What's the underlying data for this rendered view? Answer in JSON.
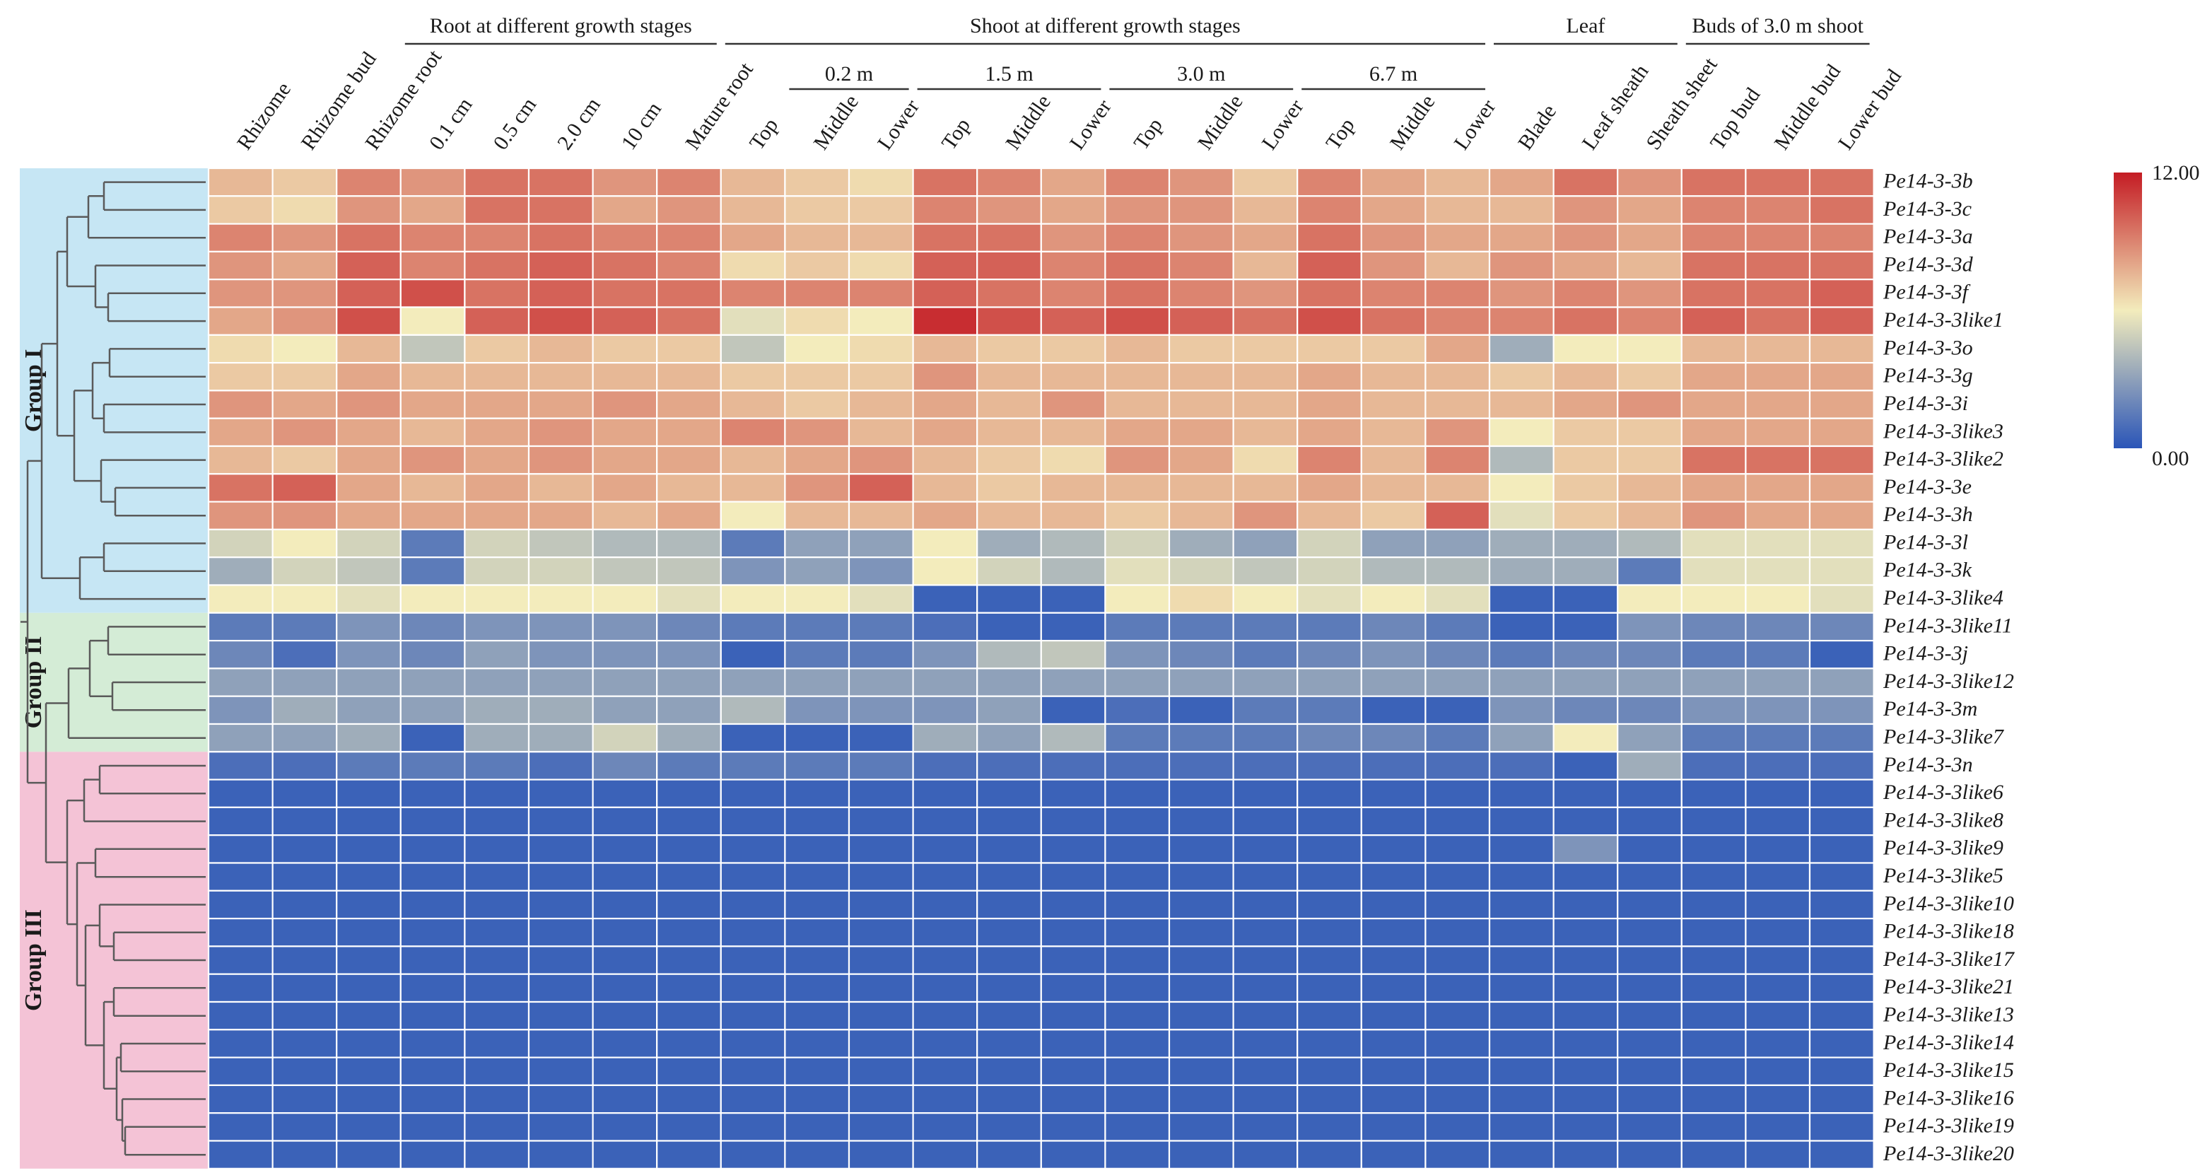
{
  "chart_data": {
    "type": "heatmap",
    "title": "",
    "xlabel": "",
    "ylabel": "",
    "color_scale": {
      "min": 0.0,
      "max": 12.0,
      "min_label": "0.00",
      "max_label": "12.00",
      "colors": [
        "#2a55b8",
        "#f3ecbc",
        "#c41c24"
      ]
    },
    "columns": [
      "Rhizome",
      "Rhizome bud",
      "Rhizome root",
      "0.1 cm",
      "0.5 cm",
      "2.0 cm",
      "10 cm",
      "Mature root",
      "Top",
      "Middle",
      "Lower",
      "Top",
      "Middle",
      "Lower",
      "Top",
      "Middle",
      "Lower",
      "Top",
      "Middle",
      "Lower",
      "Blade",
      "Leaf sheath",
      "Sheath sheet",
      "Top bud",
      "Middle bud",
      "Lower bud"
    ],
    "column_groups": [
      {
        "label": "Root at different growth stages",
        "start": 3,
        "end": 7
      },
      {
        "label": "Shoot at different growth stages",
        "start": 8,
        "end": 19
      },
      {
        "label": "Leaf",
        "start": 20,
        "end": 22
      },
      {
        "label": "Buds of 3.0 m shoot",
        "start": 23,
        "end": 25
      }
    ],
    "column_subgroups": [
      {
        "label": "0.2 m",
        "start": 9,
        "end": 10
      },
      {
        "label": "1.5 m",
        "start": 11,
        "end": 13
      },
      {
        "label": "3.0 m",
        "start": 14,
        "end": 16
      },
      {
        "label": "6.7 m",
        "start": 17,
        "end": 19
      }
    ],
    "rows": [
      "Pe14-3-3b",
      "Pe14-3-3c",
      "Pe14-3-3a",
      "Pe14-3-3d",
      "Pe14-3-3f",
      "Pe14-3-3like1",
      "Pe14-3-3o",
      "Pe14-3-3g",
      "Pe14-3-3i",
      "Pe14-3-3like3",
      "Pe14-3-3like2",
      "Pe14-3-3e",
      "Pe14-3-3h",
      "Pe14-3-3l",
      "Pe14-3-3k",
      "Pe14-3-3like4",
      "Pe14-3-3like11",
      "Pe14-3-3j",
      "Pe14-3-3like12",
      "Pe14-3-3m",
      "Pe14-3-3like7",
      "Pe14-3-3n",
      "Pe14-3-3like6",
      "Pe14-3-3like8",
      "Pe14-3-3like9",
      "Pe14-3-3like5",
      "Pe14-3-3like10",
      "Pe14-3-3like18",
      "Pe14-3-3like17",
      "Pe14-3-3like21",
      "Pe14-3-3like13",
      "Pe14-3-3like14",
      "Pe14-3-3like15",
      "Pe14-3-3like16",
      "Pe14-3-3like19",
      "Pe14-3-3like20"
    ],
    "row_groups": [
      {
        "label": "Group I",
        "start": 0,
        "end": 15,
        "color": "#c6e6f4"
      },
      {
        "label": "Group II",
        "start": 16,
        "end": 20,
        "color": "#d4ecd6"
      },
      {
        "label": "Group III",
        "start": 21,
        "end": 35,
        "color": "#f4c3d6"
      }
    ],
    "values": [
      [
        7.5,
        7.0,
        9.0,
        8.5,
        9.5,
        9.5,
        8.5,
        9.0,
        7.5,
        7.0,
        6.5,
        9.5,
        9.0,
        8.0,
        9.0,
        8.5,
        7.0,
        9.0,
        8.0,
        7.5,
        8.0,
        9.5,
        8.5,
        9.5,
        9.5,
        9.5
      ],
      [
        7.0,
        6.5,
        8.5,
        8.0,
        9.5,
        9.5,
        8.0,
        8.5,
        7.5,
        7.0,
        7.0,
        9.0,
        8.5,
        8.0,
        8.5,
        8.5,
        7.5,
        9.0,
        8.0,
        7.5,
        7.5,
        8.5,
        8.0,
        9.0,
        9.0,
        9.5
      ],
      [
        9.0,
        8.5,
        9.5,
        9.0,
        9.0,
        9.5,
        9.0,
        9.0,
        8.0,
        7.5,
        7.5,
        9.5,
        9.5,
        8.5,
        9.0,
        8.5,
        8.0,
        9.5,
        8.5,
        8.0,
        8.0,
        8.5,
        8.0,
        9.0,
        9.0,
        9.0
      ],
      [
        8.5,
        8.0,
        10.0,
        9.0,
        9.5,
        10.0,
        9.5,
        9.0,
        6.5,
        7.0,
        6.5,
        10.0,
        10.0,
        9.0,
        9.5,
        9.0,
        7.5,
        10.0,
        8.5,
        7.5,
        8.5,
        8.0,
        7.5,
        9.5,
        9.5,
        9.5
      ],
      [
        8.5,
        8.5,
        10.0,
        10.5,
        9.5,
        10.0,
        9.5,
        9.5,
        9.0,
        9.0,
        9.0,
        10.0,
        9.5,
        9.0,
        9.5,
        9.0,
        8.5,
        9.5,
        9.0,
        9.0,
        8.5,
        9.0,
        8.5,
        9.5,
        9.5,
        10.0
      ],
      [
        8.0,
        8.5,
        10.5,
        6.0,
        10.0,
        10.5,
        10.0,
        9.5,
        5.5,
        6.5,
        6.0,
        11.5,
        10.5,
        10.0,
        10.5,
        10.0,
        9.5,
        10.5,
        9.5,
        9.0,
        9.0,
        9.5,
        9.0,
        10.0,
        9.5,
        10.0
      ],
      [
        6.5,
        6.0,
        7.5,
        4.5,
        7.0,
        7.5,
        7.0,
        7.0,
        4.5,
        6.0,
        6.5,
        7.5,
        7.0,
        7.0,
        7.5,
        7.0,
        7.0,
        7.0,
        7.0,
        8.0,
        3.5,
        6.0,
        6.0,
        7.5,
        7.5,
        7.5
      ],
      [
        7.0,
        7.0,
        8.0,
        7.5,
        7.5,
        7.5,
        7.5,
        7.5,
        7.0,
        7.0,
        7.0,
        8.5,
        7.5,
        7.5,
        7.5,
        7.5,
        7.5,
        8.0,
        7.5,
        7.5,
        7.0,
        7.5,
        7.0,
        8.0,
        8.0,
        8.0
      ],
      [
        8.5,
        8.0,
        8.5,
        8.0,
        8.0,
        8.0,
        8.5,
        8.0,
        7.5,
        7.0,
        7.5,
        8.0,
        7.5,
        8.5,
        7.5,
        7.5,
        7.5,
        8.0,
        7.5,
        7.5,
        7.5,
        8.0,
        8.5,
        8.0,
        8.0,
        8.0
      ],
      [
        8.0,
        8.5,
        8.0,
        7.5,
        8.0,
        8.5,
        8.0,
        8.0,
        9.0,
        8.5,
        7.5,
        8.0,
        7.5,
        7.5,
        8.0,
        8.0,
        7.5,
        8.0,
        7.5,
        8.5,
        6.0,
        7.0,
        7.0,
        8.0,
        8.0,
        8.0
      ],
      [
        7.5,
        7.0,
        8.0,
        8.5,
        8.0,
        8.5,
        8.0,
        8.0,
        7.5,
        8.0,
        8.5,
        7.5,
        7.0,
        6.5,
        8.5,
        8.0,
        6.5,
        9.0,
        7.5,
        9.0,
        4.0,
        7.0,
        7.0,
        9.5,
        9.5,
        9.5
      ],
      [
        9.5,
        10.0,
        8.0,
        7.5,
        8.0,
        7.5,
        8.0,
        7.5,
        7.5,
        8.5,
        10.0,
        7.5,
        7.0,
        7.5,
        7.5,
        7.5,
        7.5,
        8.0,
        7.5,
        7.5,
        6.0,
        7.0,
        7.5,
        8.0,
        8.0,
        8.0
      ],
      [
        8.5,
        8.5,
        8.0,
        8.0,
        8.0,
        8.0,
        7.5,
        8.0,
        6.0,
        7.5,
        7.5,
        8.0,
        7.5,
        7.5,
        7.0,
        7.5,
        8.5,
        7.5,
        7.0,
        10.0,
        5.5,
        7.0,
        7.5,
        8.5,
        8.0,
        8.0
      ],
      [
        5.0,
        6.0,
        5.0,
        1.5,
        5.0,
        4.5,
        4.0,
        4.0,
        1.5,
        3.0,
        3.0,
        6.0,
        3.5,
        4.0,
        5.0,
        3.5,
        3.0,
        5.0,
        3.0,
        3.0,
        3.5,
        3.5,
        4.0,
        5.5,
        5.5,
        5.5
      ],
      [
        3.5,
        5.0,
        4.5,
        1.5,
        5.0,
        5.0,
        4.5,
        4.5,
        2.5,
        3.0,
        2.5,
        6.0,
        5.0,
        4.0,
        5.5,
        5.0,
        4.5,
        5.0,
        4.0,
        4.0,
        3.5,
        3.5,
        1.5,
        5.5,
        5.5,
        5.5
      ],
      [
        6.0,
        6.0,
        5.5,
        6.0,
        6.0,
        6.0,
        6.0,
        5.5,
        6.0,
        6.0,
        5.5,
        0.5,
        0.5,
        0.5,
        6.0,
        6.5,
        6.0,
        5.5,
        6.0,
        5.5,
        0.5,
        0.5,
        6.0,
        6.0,
        6.0,
        5.5
      ],
      [
        1.5,
        1.5,
        2.5,
        2.0,
        2.5,
        2.5,
        2.5,
        2.0,
        1.5,
        1.5,
        1.5,
        1.0,
        0.5,
        0.5,
        1.5,
        1.5,
        1.5,
        1.5,
        2.0,
        1.5,
        0.5,
        0.5,
        2.5,
        2.0,
        2.0,
        2.0
      ],
      [
        2.0,
        1.0,
        2.5,
        2.0,
        3.0,
        2.5,
        2.5,
        2.5,
        0.5,
        1.5,
        1.5,
        2.5,
        4.0,
        4.5,
        2.5,
        2.0,
        1.5,
        2.0,
        2.5,
        2.0,
        1.5,
        2.0,
        2.0,
        1.5,
        1.5,
        0.5
      ],
      [
        3.0,
        3.0,
        3.0,
        3.0,
        3.0,
        3.0,
        3.0,
        3.0,
        3.0,
        3.0,
        3.0,
        3.0,
        3.0,
        3.0,
        3.0,
        3.0,
        3.0,
        3.0,
        3.0,
        3.0,
        3.0,
        3.0,
        3.0,
        3.0,
        3.0,
        3.0
      ],
      [
        2.5,
        3.5,
        3.0,
        3.0,
        3.5,
        3.5,
        3.0,
        3.0,
        4.0,
        2.5,
        2.5,
        2.5,
        3.0,
        0.5,
        1.0,
        0.5,
        1.5,
        1.5,
        0.5,
        0.5,
        2.5,
        2.0,
        2.0,
        2.5,
        2.5,
        2.5
      ],
      [
        3.0,
        3.0,
        3.5,
        0.5,
        3.5,
        3.5,
        5.0,
        3.5,
        0.5,
        0.5,
        0.5,
        3.5,
        3.0,
        4.0,
        1.5,
        1.5,
        1.5,
        2.0,
        2.0,
        1.5,
        3.0,
        6.0,
        3.0,
        1.5,
        1.5,
        1.5
      ],
      [
        1.0,
        1.0,
        1.5,
        1.5,
        1.5,
        1.0,
        2.0,
        1.5,
        1.5,
        1.5,
        1.5,
        1.0,
        1.0,
        1.0,
        1.0,
        1.0,
        1.0,
        1.0,
        1.0,
        1.0,
        1.0,
        0.5,
        3.5,
        1.0,
        1.0,
        1.0
      ],
      [
        0.5,
        0.5,
        0.5,
        0.5,
        0.5,
        0.5,
        0.5,
        0.5,
        0.5,
        0.5,
        0.5,
        0.5,
        0.5,
        0.5,
        0.5,
        0.5,
        0.5,
        0.5,
        0.5,
        0.5,
        0.5,
        0.5,
        0.5,
        0.5,
        0.5,
        0.5
      ],
      [
        0.5,
        0.5,
        0.5,
        0.5,
        0.5,
        0.5,
        0.5,
        0.5,
        0.5,
        0.5,
        0.5,
        0.5,
        0.5,
        0.5,
        0.5,
        0.5,
        0.5,
        0.5,
        0.5,
        0.5,
        0.5,
        0.5,
        0.5,
        0.5,
        0.5,
        0.5
      ],
      [
        0.5,
        0.5,
        0.5,
        0.5,
        0.5,
        0.5,
        0.5,
        0.5,
        0.5,
        0.5,
        0.5,
        0.5,
        0.5,
        0.5,
        0.5,
        0.5,
        0.5,
        0.5,
        0.5,
        0.5,
        0.5,
        2.5,
        0.5,
        0.5,
        0.5,
        0.5
      ],
      [
        0.5,
        0.5,
        0.5,
        0.5,
        0.5,
        0.5,
        0.5,
        0.5,
        0.5,
        0.5,
        0.5,
        0.5,
        0.5,
        0.5,
        0.5,
        0.5,
        0.5,
        0.5,
        0.5,
        0.5,
        0.5,
        0.5,
        0.5,
        0.5,
        0.5,
        0.5
      ],
      [
        0.5,
        0.5,
        0.5,
        0.5,
        0.5,
        0.5,
        0.5,
        0.5,
        0.5,
        0.5,
        0.5,
        0.5,
        0.5,
        0.5,
        0.5,
        0.5,
        0.5,
        0.5,
        0.5,
        0.5,
        0.5,
        0.5,
        0.5,
        0.5,
        0.5,
        0.5
      ],
      [
        0.5,
        0.5,
        0.5,
        0.5,
        0.5,
        0.5,
        0.5,
        0.5,
        0.5,
        0.5,
        0.5,
        0.5,
        0.5,
        0.5,
        0.5,
        0.5,
        0.5,
        0.5,
        0.5,
        0.5,
        0.5,
        0.5,
        0.5,
        0.5,
        0.5,
        0.5
      ],
      [
        0.5,
        0.5,
        0.5,
        0.5,
        0.5,
        0.5,
        0.5,
        0.5,
        0.5,
        0.5,
        0.5,
        0.5,
        0.5,
        0.5,
        0.5,
        0.5,
        0.5,
        0.5,
        0.5,
        0.5,
        0.5,
        0.5,
        0.5,
        0.5,
        0.5,
        0.5
      ],
      [
        0.5,
        0.5,
        0.5,
        0.5,
        0.5,
        0.5,
        0.5,
        0.5,
        0.5,
        0.5,
        0.5,
        0.5,
        0.5,
        0.5,
        0.5,
        0.5,
        0.5,
        0.5,
        0.5,
        0.5,
        0.5,
        0.5,
        0.5,
        0.5,
        0.5,
        0.5
      ],
      [
        0.5,
        0.5,
        0.5,
        0.5,
        0.5,
        0.5,
        0.5,
        0.5,
        0.5,
        0.5,
        0.5,
        0.5,
        0.5,
        0.5,
        0.5,
        0.5,
        0.5,
        0.5,
        0.5,
        0.5,
        0.5,
        0.5,
        0.5,
        0.5,
        0.5,
        0.5
      ],
      [
        0.5,
        0.5,
        0.5,
        0.5,
        0.5,
        0.5,
        0.5,
        0.5,
        0.5,
        0.5,
        0.5,
        0.5,
        0.5,
        0.5,
        0.5,
        0.5,
        0.5,
        0.5,
        0.5,
        0.5,
        0.5,
        0.5,
        0.5,
        0.5,
        0.5,
        0.5
      ],
      [
        0.5,
        0.5,
        0.5,
        0.5,
        0.5,
        0.5,
        0.5,
        0.5,
        0.5,
        0.5,
        0.5,
        0.5,
        0.5,
        0.5,
        0.5,
        0.5,
        0.5,
        0.5,
        0.5,
        0.5,
        0.5,
        0.5,
        0.5,
        0.5,
        0.5,
        0.5
      ],
      [
        0.5,
        0.5,
        0.5,
        0.5,
        0.5,
        0.5,
        0.5,
        0.5,
        0.5,
        0.5,
        0.5,
        0.5,
        0.5,
        0.5,
        0.5,
        0.5,
        0.5,
        0.5,
        0.5,
        0.5,
        0.5,
        0.5,
        0.5,
        0.5,
        0.5,
        0.5
      ],
      [
        0.5,
        0.5,
        0.5,
        0.5,
        0.5,
        0.5,
        0.5,
        0.5,
        0.5,
        0.5,
        0.5,
        0.5,
        0.5,
        0.5,
        0.5,
        0.5,
        0.5,
        0.5,
        0.5,
        0.5,
        0.5,
        0.5,
        0.5,
        0.5,
        0.5,
        0.5
      ],
      [
        0.5,
        0.5,
        0.5,
        0.5,
        0.5,
        0.5,
        0.5,
        0.5,
        0.5,
        0.5,
        0.5,
        0.5,
        0.5,
        0.5,
        0.5,
        0.5,
        0.5,
        0.5,
        0.5,
        0.5,
        0.5,
        0.5,
        0.5,
        0.5,
        0.5,
        0.5
      ]
    ]
  }
}
